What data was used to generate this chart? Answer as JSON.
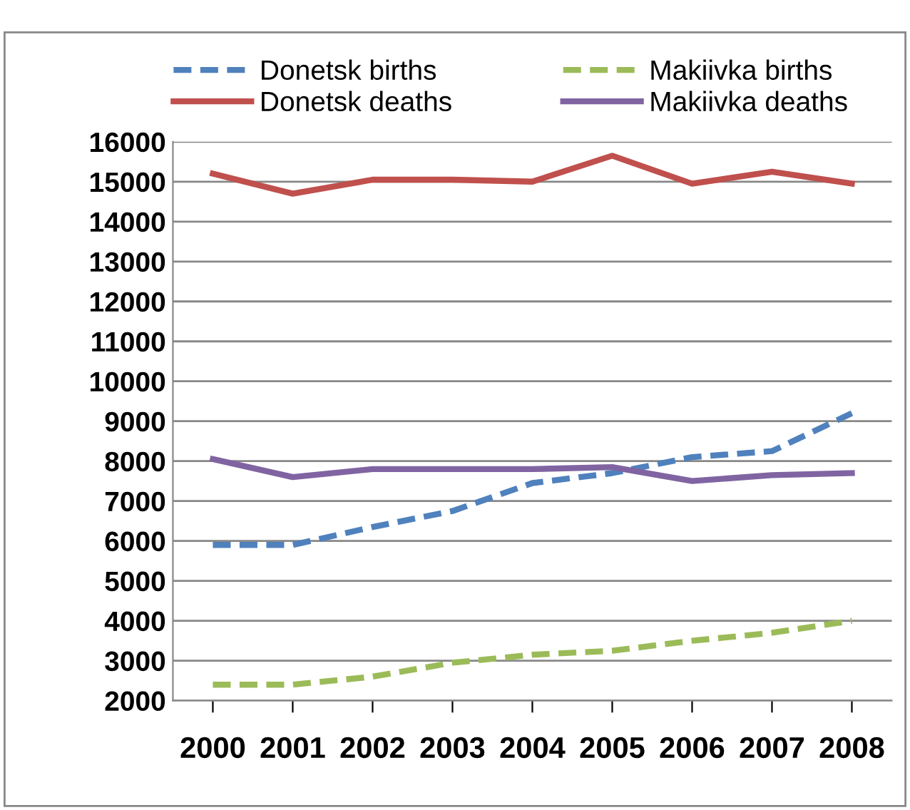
{
  "chart_data": {
    "type": "line",
    "categories": [
      "2000",
      "2001",
      "2002",
      "2003",
      "2004",
      "2005",
      "2006",
      "2007",
      "2008"
    ],
    "series": [
      {
        "name": "Donetsk births",
        "color": "#4f81bd",
        "line_style": "dashed",
        "values": [
          5900,
          5900,
          6350,
          6750,
          7450,
          7700,
          8100,
          8250,
          9200
        ]
      },
      {
        "name": "Donetsk deaths",
        "color": "#c0504d",
        "line_style": "solid",
        "values": [
          15200,
          14700,
          15050,
          15050,
          15000,
          15650,
          14950,
          15250,
          14950
        ]
      },
      {
        "name": "Makiivka births",
        "color": "#9bbb59",
        "line_style": "dashed",
        "values": [
          2400,
          2400,
          2600,
          2950,
          3150,
          3250,
          3500,
          3700,
          4000
        ]
      },
      {
        "name": "Makiivka deaths",
        "color": "#8064a2",
        "line_style": "solid",
        "values": [
          8050,
          7600,
          7800,
          7800,
          7800,
          7850,
          7500,
          7650,
          7700
        ]
      }
    ],
    "ylim": [
      2000,
      16000
    ],
    "yticks": [
      2000,
      3000,
      4000,
      5000,
      6000,
      7000,
      8000,
      9000,
      10000,
      11000,
      12000,
      13000,
      14000,
      15000,
      16000
    ],
    "grid": "y",
    "legend": "top",
    "marker": "none"
  }
}
